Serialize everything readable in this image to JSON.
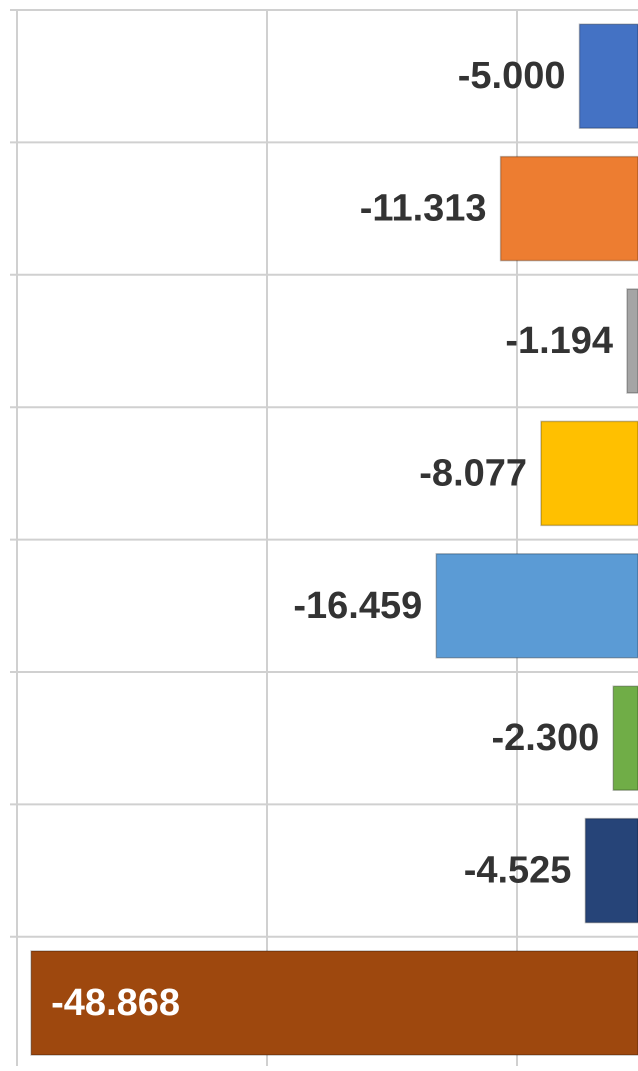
{
  "chart_data": {
    "type": "hbar",
    "categories": [
      null,
      null,
      null,
      null,
      null,
      null,
      null,
      null
    ],
    "values": [
      -5.0,
      -11.313,
      -1.194,
      -8.077,
      -16.459,
      -2.3,
      -4.525,
      -48.868
    ],
    "value_labels": [
      "-5.000",
      "-11.313",
      "-1.194",
      "-8.077",
      "-16.459",
      "-2.300",
      "-4.525",
      "-48.868"
    ],
    "colors": [
      "#4472c4",
      "#ed7d31",
      "#a5a5a5",
      "#ffc000",
      "#5b9bd5",
      "#70ad47",
      "#264478",
      "#9e480e"
    ],
    "xlim": [
      -51.36,
      -0.32
    ],
    "xticks": [
      -50,
      -30,
      -10
    ],
    "grid": true
  }
}
